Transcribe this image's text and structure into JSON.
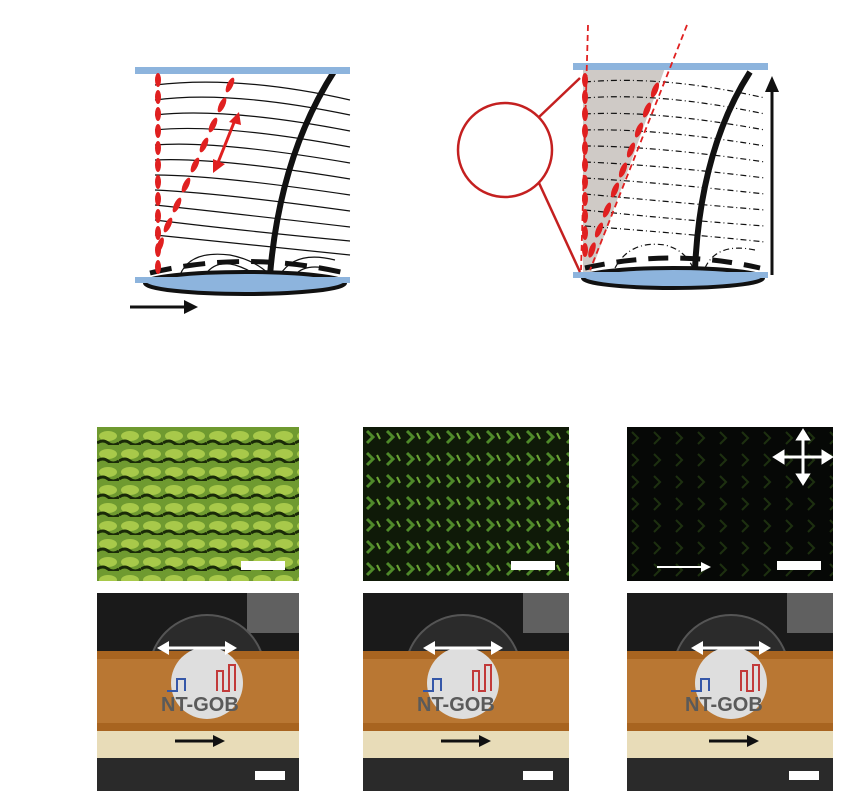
{
  "figure": {
    "schematics": [
      {
        "name": "schematic-left",
        "cell": "liquid-crystal-cell",
        "shaded_wedge": false
      },
      {
        "name": "schematic-right",
        "cell": "liquid-crystal-cell",
        "shaded_wedge": true,
        "magnifier": true
      }
    ],
    "micrographs": [
      {
        "name": "micrograph-bright",
        "tone": "bright-green",
        "crossed_polarizer_icon": false,
        "has_arrow": false
      },
      {
        "name": "micrograph-medium",
        "tone": "dim-green",
        "crossed_polarizer_icon": false,
        "has_arrow": false
      },
      {
        "name": "micrograph-dark",
        "tone": "dark",
        "crossed_polarizer_icon": true,
        "has_arrow": true
      }
    ],
    "photos": [
      {
        "name": "photo-1",
        "logo_text": "NT-GOB",
        "double_arrow": true,
        "single_arrow": true
      },
      {
        "name": "photo-2",
        "logo_text": "NT-GOB",
        "double_arrow": true,
        "single_arrow": true
      },
      {
        "name": "photo-3",
        "logo_text": "NT-GOB",
        "double_arrow": true,
        "single_arrow": true
      }
    ],
    "colors": {
      "plate_blue": "#8db4dd",
      "director_red": "#e02020",
      "line_black": "#111111",
      "wedge_gray": "#cfcac6",
      "green_bright": "#7fb13a",
      "tape_orange": "#b86a1e"
    }
  }
}
